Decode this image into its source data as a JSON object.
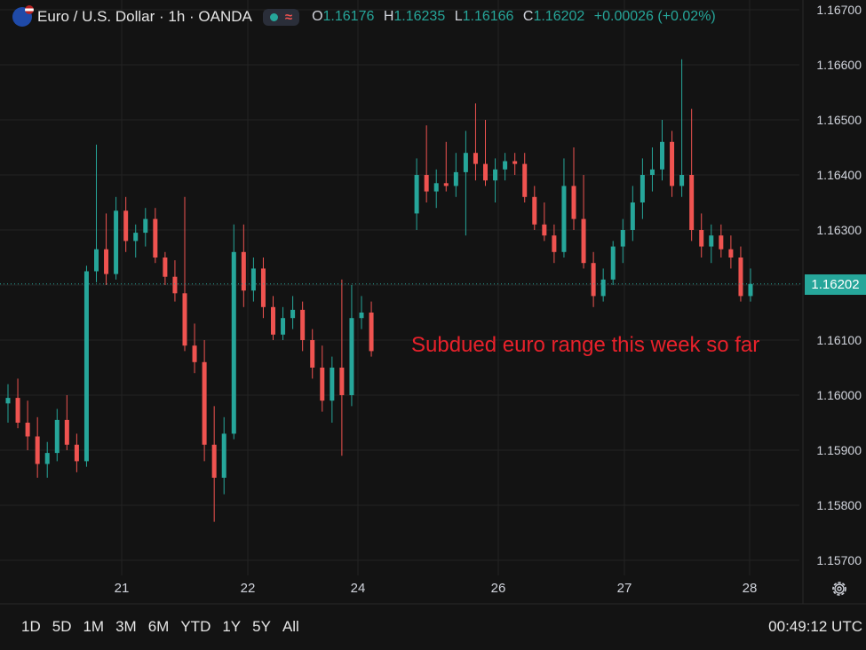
{
  "legend": {
    "title": "Euro / U.S. Dollar · 1h · OANDA",
    "indicator_symbol": "≈",
    "ohlc": [
      {
        "key": "O",
        "value": "1.16176"
      },
      {
        "key": "H",
        "value": "1.16235"
      },
      {
        "key": "L",
        "value": "1.16166"
      },
      {
        "key": "C",
        "value": "1.16202"
      }
    ],
    "change": "+0.00026 (+0.02%)"
  },
  "annotation": "Subdued euro range this week so far",
  "last_price_label": "1.16202",
  "range_buttons": [
    "1D",
    "5D",
    "1M",
    "3M",
    "6M",
    "YTD",
    "1Y",
    "5Y",
    "All"
  ],
  "clock": "00:49:12 UTC",
  "colors": {
    "up": "#26a69a",
    "down": "#ef5350",
    "grid": "#232323",
    "background": "#131313",
    "annotation": "#e8212b"
  },
  "chart_data": {
    "type": "candlestick",
    "y_ticks": [
      "1.16700",
      "1.16600",
      "1.16500",
      "1.16400",
      "1.16300",
      "1.16200",
      "1.16100",
      "1.16000",
      "1.15900",
      "1.15800",
      "1.15700"
    ],
    "ylim": [
      1.1568,
      1.1672
    ],
    "x_ticks": [
      "21",
      "22",
      "24",
      "26",
      "27",
      "28"
    ],
    "last_price": 1.16202,
    "candles": [
      [
        1.15985,
        1.1602,
        1.1595,
        1.15995
      ],
      [
        1.15995,
        1.1603,
        1.1594,
        1.1595
      ],
      [
        1.1595,
        1.1599,
        1.159,
        1.15925
      ],
      [
        1.15925,
        1.1596,
        1.1585,
        1.15875
      ],
      [
        1.15875,
        1.15915,
        1.1585,
        1.15895
      ],
      [
        1.15895,
        1.15975,
        1.1588,
        1.15955
      ],
      [
        1.15955,
        1.16,
        1.159,
        1.1591
      ],
      [
        1.1591,
        1.1593,
        1.1586,
        1.1588
      ],
      [
        1.1588,
        1.16235,
        1.1587,
        1.16225
      ],
      [
        1.16225,
        1.16455,
        1.16205,
        1.16265
      ],
      [
        1.16265,
        1.1633,
        1.162,
        1.1622
      ],
      [
        1.1622,
        1.1636,
        1.1621,
        1.16335
      ],
      [
        1.16335,
        1.1636,
        1.1626,
        1.1628
      ],
      [
        1.1628,
        1.1631,
        1.1625,
        1.16295
      ],
      [
        1.16295,
        1.1634,
        1.1627,
        1.1632
      ],
      [
        1.1632,
        1.1634,
        1.1624,
        1.1625
      ],
      [
        1.1625,
        1.1626,
        1.162,
        1.16215
      ],
      [
        1.16215,
        1.16245,
        1.1617,
        1.16185
      ],
      [
        1.16185,
        1.1636,
        1.1608,
        1.1609
      ],
      [
        1.1609,
        1.1613,
        1.1604,
        1.1606
      ],
      [
        1.1606,
        1.161,
        1.1588,
        1.1591
      ],
      [
        1.1591,
        1.1598,
        1.1577,
        1.1585
      ],
      [
        1.1585,
        1.1596,
        1.1582,
        1.1593
      ],
      [
        1.1593,
        1.1631,
        1.1592,
        1.1626
      ],
      [
        1.1626,
        1.1631,
        1.1616,
        1.1619
      ],
      [
        1.1619,
        1.1625,
        1.1617,
        1.1623
      ],
      [
        1.1623,
        1.1625,
        1.1614,
        1.1616
      ],
      [
        1.1616,
        1.1618,
        1.161,
        1.1611
      ],
      [
        1.1611,
        1.1616,
        1.161,
        1.1614
      ],
      [
        1.1614,
        1.1618,
        1.1612,
        1.16155
      ],
      [
        1.16155,
        1.1617,
        1.1608,
        1.161
      ],
      [
        1.161,
        1.1612,
        1.1603,
        1.1605
      ],
      [
        1.1605,
        1.1609,
        1.1597,
        1.1599
      ],
      [
        1.1599,
        1.1607,
        1.1595,
        1.1605
      ],
      [
        1.1605,
        1.1621,
        1.1589,
        1.16
      ],
      [
        1.16,
        1.162,
        1.1598,
        1.1614
      ],
      [
        1.1614,
        1.1618,
        1.1612,
        1.1615
      ],
      [
        1.1615,
        1.1617,
        1.1607,
        1.1608
      ],
      [
        1.1633,
        1.1643,
        1.163,
        1.164
      ],
      [
        1.164,
        1.1649,
        1.1635,
        1.1637
      ],
      [
        1.1637,
        1.1641,
        1.1634,
        1.16385
      ],
      [
        1.16385,
        1.1646,
        1.1637,
        1.1638
      ],
      [
        1.1638,
        1.1644,
        1.1636,
        1.16405
      ],
      [
        1.16405,
        1.1648,
        1.1629,
        1.1644
      ],
      [
        1.1644,
        1.1653,
        1.1639,
        1.1642
      ],
      [
        1.1642,
        1.165,
        1.1638,
        1.1639
      ],
      [
        1.1639,
        1.1643,
        1.1635,
        1.1641
      ],
      [
        1.1641,
        1.1644,
        1.1639,
        1.16425
      ],
      [
        1.16425,
        1.1644,
        1.164,
        1.1642
      ],
      [
        1.1642,
        1.1644,
        1.1635,
        1.1636
      ],
      [
        1.1636,
        1.1638,
        1.163,
        1.1631
      ],
      [
        1.1631,
        1.1635,
        1.1628,
        1.1629
      ],
      [
        1.1629,
        1.1631,
        1.1624,
        1.1626
      ],
      [
        1.1626,
        1.1643,
        1.1625,
        1.1638
      ],
      [
        1.1638,
        1.1645,
        1.163,
        1.1632
      ],
      [
        1.1632,
        1.164,
        1.1623,
        1.1624
      ],
      [
        1.1624,
        1.1626,
        1.1616,
        1.1618
      ],
      [
        1.1618,
        1.1623,
        1.1617,
        1.1621
      ],
      [
        1.1621,
        1.1628,
        1.162,
        1.1627
      ],
      [
        1.1627,
        1.1632,
        1.1624,
        1.163
      ],
      [
        1.163,
        1.1638,
        1.1628,
        1.1635
      ],
      [
        1.1635,
        1.1643,
        1.1632,
        1.164
      ],
      [
        1.164,
        1.1645,
        1.1637,
        1.1641
      ],
      [
        1.1641,
        1.165,
        1.1639,
        1.1646
      ],
      [
        1.1646,
        1.1648,
        1.1636,
        1.1638
      ],
      [
        1.1638,
        1.1661,
        1.1636,
        1.164
      ],
      [
        1.164,
        1.1652,
        1.1628,
        1.163
      ],
      [
        1.163,
        1.1633,
        1.1625,
        1.1627
      ],
      [
        1.1627,
        1.1631,
        1.1624,
        1.1629
      ],
      [
        1.1629,
        1.1631,
        1.1625,
        1.16265
      ],
      [
        1.16265,
        1.1629,
        1.1623,
        1.1625
      ],
      [
        1.1625,
        1.1627,
        1.1617,
        1.1618
      ],
      [
        1.1618,
        1.1623,
        1.1617,
        1.16202
      ]
    ]
  }
}
